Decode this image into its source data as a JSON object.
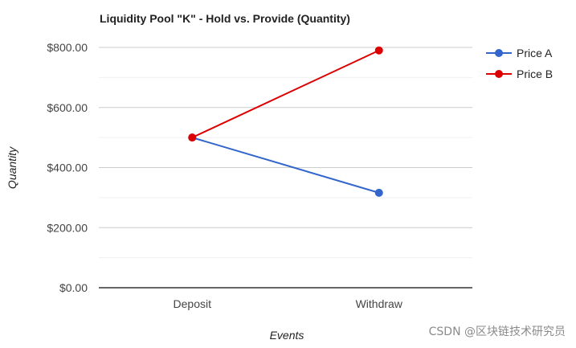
{
  "watermark": "CSDN @区块链技术研究员",
  "chart_data": {
    "type": "line",
    "title": "Liquidity Pool \"K\" - Hold vs. Provide (Quantity)",
    "xlabel": "Events",
    "ylabel": "Quantity",
    "categories": [
      "Deposit",
      "Withdraw"
    ],
    "ylim": [
      0,
      800
    ],
    "yticks": [
      {
        "value": 0,
        "label": "$0.00"
      },
      {
        "value": 200,
        "label": "$200.00"
      },
      {
        "value": 400,
        "label": "$400.00"
      },
      {
        "value": 600,
        "label": "$600.00"
      },
      {
        "value": 800,
        "label": "$800.00"
      }
    ],
    "grid": true,
    "legend": "right",
    "series": [
      {
        "name": "Price A",
        "color": "#3366cc",
        "values": [
          500,
          316
        ]
      },
      {
        "name": "Price B",
        "color": "#dc0000",
        "values": [
          500,
          790
        ]
      }
    ]
  }
}
